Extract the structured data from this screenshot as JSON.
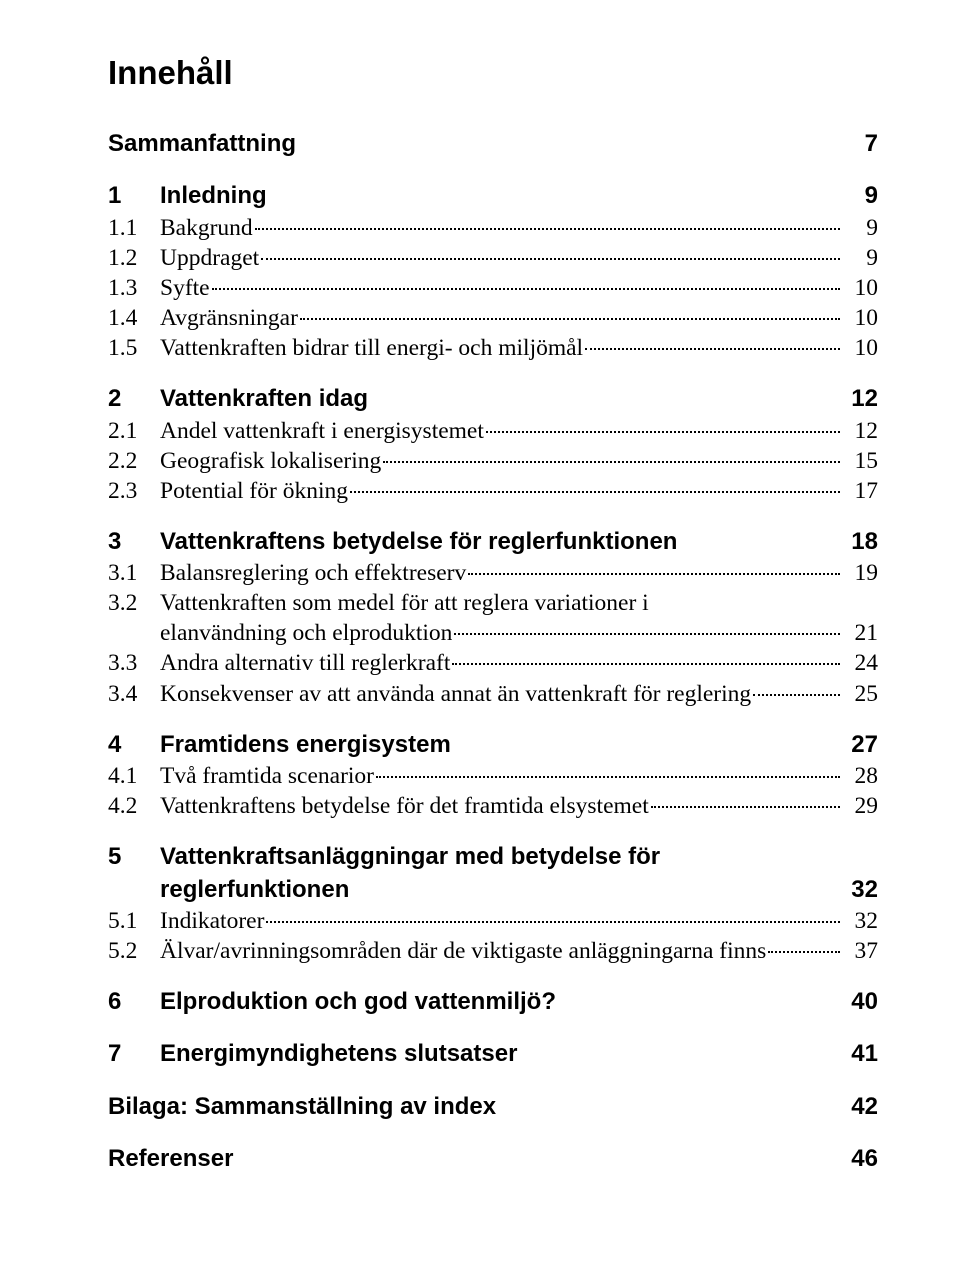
{
  "title": "Innehåll",
  "toc": [
    {
      "type": "l1",
      "num": "",
      "label": "Sammanfattning",
      "page": "7"
    },
    {
      "type": "l1",
      "num": "1",
      "label": "Inledning",
      "page": "9"
    },
    {
      "type": "l2",
      "num": "1.1",
      "label": "Bakgrund",
      "page": "9"
    },
    {
      "type": "l2",
      "num": "1.2",
      "label": "Uppdraget",
      "page": "9"
    },
    {
      "type": "l2",
      "num": "1.3",
      "label": "Syfte",
      "page": "10"
    },
    {
      "type": "l2",
      "num": "1.4",
      "label": "Avgränsningar",
      "page": "10"
    },
    {
      "type": "l2",
      "num": "1.5",
      "label": "Vattenkraften bidrar till energi- och miljömål",
      "page": "10"
    },
    {
      "type": "l1",
      "num": "2",
      "label": "Vattenkraften idag",
      "page": "12"
    },
    {
      "type": "l2",
      "num": "2.1",
      "label": "Andel vattenkraft i energisystemet",
      "page": "12"
    },
    {
      "type": "l2",
      "num": "2.2",
      "label": "Geografisk lokalisering",
      "page": "15"
    },
    {
      "type": "l2",
      "num": "2.3",
      "label": "Potential för ökning",
      "page": "17"
    },
    {
      "type": "l1",
      "num": "3",
      "label": "Vattenkraftens betydelse för reglerfunktionen",
      "page": "18"
    },
    {
      "type": "l2",
      "num": "3.1",
      "label": "Balansreglering och effektreserv",
      "page": "19"
    },
    {
      "type": "l2m",
      "num": "3.2",
      "label1": "Vattenkraften som medel för att reglera variationer i",
      "label2": "elanvändning och elproduktion",
      "page": "21"
    },
    {
      "type": "l2",
      "num": "3.3",
      "label": "Andra alternativ till reglerkraft",
      "page": "24"
    },
    {
      "type": "l2",
      "num": "3.4",
      "label": "Konsekvenser av att använda annat än vattenkraft för reglering",
      "page": "25"
    },
    {
      "type": "l1",
      "num": "4",
      "label": "Framtidens energisystem",
      "page": "27"
    },
    {
      "type": "l2",
      "num": "4.1",
      "label": "Två framtida scenarior",
      "page": "28"
    },
    {
      "type": "l2",
      "num": "4.2",
      "label": "Vattenkraftens betydelse för det framtida elsystemet",
      "page": "29"
    },
    {
      "type": "l1m",
      "num": "5",
      "label1": "Vattenkraftsanläggningar med betydelse för",
      "label2": "reglerfunktionen",
      "page": "32"
    },
    {
      "type": "l2",
      "num": "5.1",
      "label": "Indikatorer",
      "page": "32"
    },
    {
      "type": "l2",
      "num": "5.2",
      "label": "Älvar/avrinningsområden där de viktigaste anläggningarna finns",
      "page": "37"
    },
    {
      "type": "l1",
      "num": "6",
      "label": "Elproduktion och god vattenmiljö?",
      "page": "40"
    },
    {
      "type": "l1",
      "num": "7",
      "label": "Energimyndighetens slutsatser",
      "page": "41"
    },
    {
      "type": "l1",
      "num": "",
      "label": "Bilaga: Sammanställning av index",
      "page": "42"
    },
    {
      "type": "l1",
      "num": "",
      "label": "Referenser",
      "page": "46"
    }
  ]
}
